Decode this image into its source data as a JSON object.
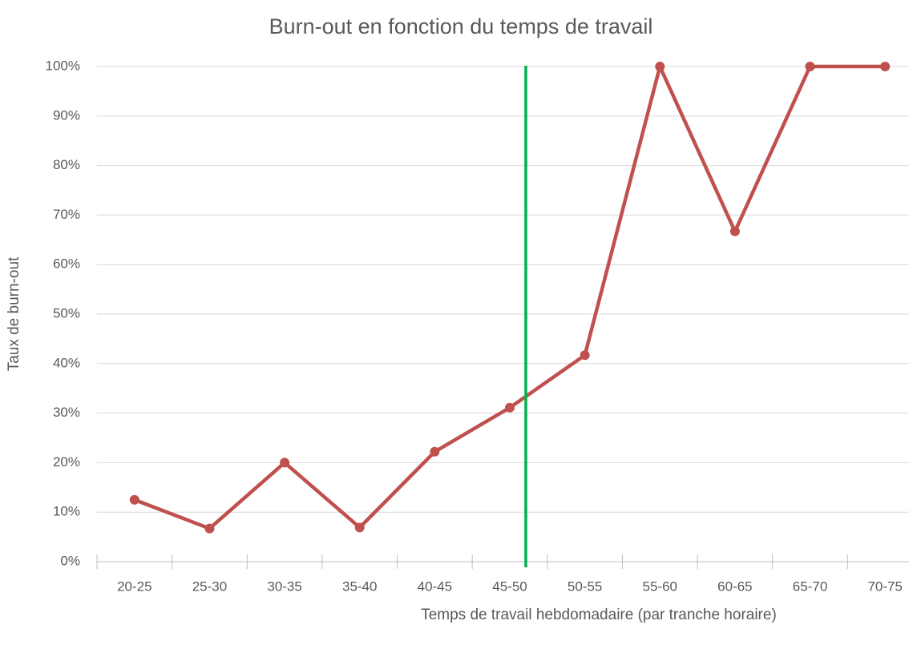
{
  "chart_data": {
    "type": "line",
    "title": "Burn-out en fonction du temps de travail",
    "x_label": "Temps de travail hebdomadaire (par tranche horaire)",
    "y_label": "Taux de burn-out",
    "categories": [
      "20-25",
      "25-30",
      "30-35",
      "35-40",
      "40-45",
      "45-50",
      "50-55",
      "55-60",
      "60-65",
      "65-70",
      "70-75"
    ],
    "series": [
      {
        "name": "Taux de burn-out",
        "color": "#c0504d",
        "values": [
          12.5,
          6.7,
          20,
          6.9,
          22.2,
          31.1,
          41.7,
          100,
          66.7,
          100,
          100
        ]
      }
    ],
    "ylim": [
      0,
      100
    ],
    "yticks": [
      {
        "value": 0,
        "label": "0%"
      },
      {
        "value": 10,
        "label": "10%"
      },
      {
        "value": 20,
        "label": "20%"
      },
      {
        "value": 30,
        "label": "30%"
      },
      {
        "value": 40,
        "label": "40%"
      },
      {
        "value": 50,
        "label": "50%"
      },
      {
        "value": 60,
        "label": "60%"
      },
      {
        "value": 70,
        "label": "70%"
      },
      {
        "value": 80,
        "label": "80%"
      },
      {
        "value": 90,
        "label": "90%"
      },
      {
        "value": 100,
        "label": "100%"
      }
    ],
    "grid": true
  }
}
